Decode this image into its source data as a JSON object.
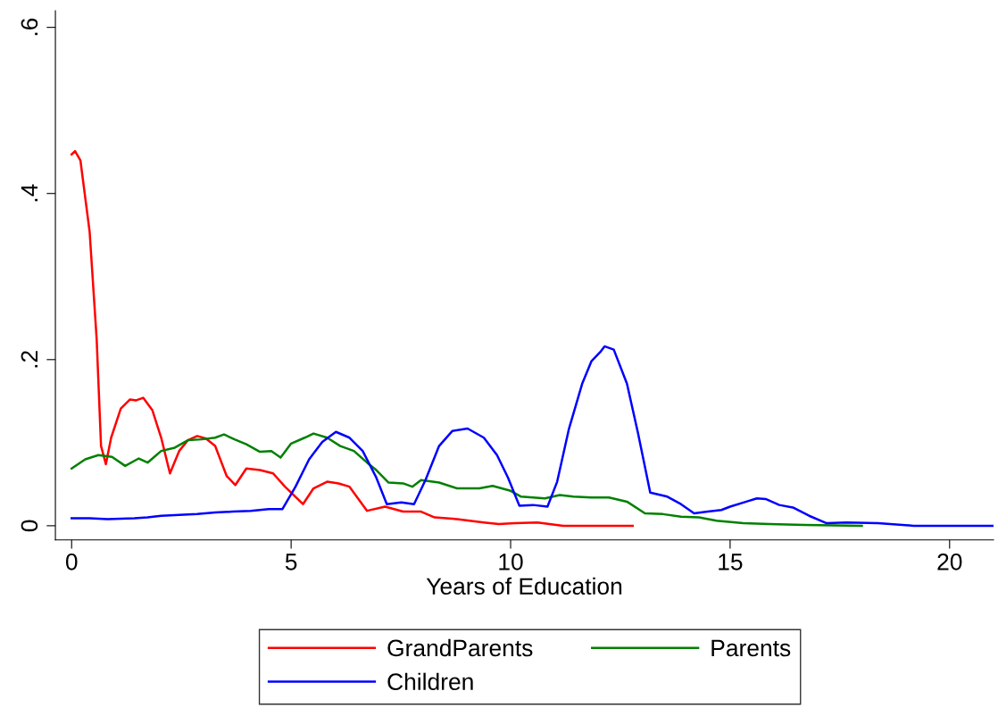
{
  "chart_data": {
    "type": "line",
    "xlabel": "Years of Education",
    "xlim": [
      -0.37,
      21.0
    ],
    "ylim": [
      -0.017,
      0.62
    ],
    "xticks": [
      0,
      5,
      10,
      15,
      20
    ],
    "yticks": [
      {
        "value": 0,
        "label": "0"
      },
      {
        "value": 0.2,
        "label": ".2"
      },
      {
        "value": 0.4,
        "label": ".4"
      },
      {
        "value": 0.6,
        "label": ".6"
      }
    ],
    "grid": false,
    "legend": "bottom",
    "marker": "none",
    "line_style": "solid",
    "series": [
      {
        "name": "GrandParents",
        "color": "#ff0000",
        "x": [
          0,
          0.08,
          0.2,
          0.41,
          0.57,
          0.67,
          0.78,
          0.9,
          1.12,
          1.33,
          1.47,
          1.63,
          1.84,
          2.04,
          2.24,
          2.45,
          2.65,
          2.86,
          3.06,
          3.27,
          3.53,
          3.73,
          3.98,
          4.29,
          4.59,
          4.86,
          5.27,
          5.51,
          5.82,
          6.08,
          6.33,
          6.73,
          7.14,
          7.55,
          7.96,
          8.27,
          8.78,
          9.39,
          9.73,
          10.1,
          10.61,
          11.2,
          12.78
        ],
        "values": [
          0.447,
          0.451,
          0.44,
          0.354,
          0.225,
          0.096,
          0.074,
          0.106,
          0.141,
          0.152,
          0.151,
          0.154,
          0.139,
          0.106,
          0.063,
          0.09,
          0.103,
          0.108,
          0.105,
          0.096,
          0.06,
          0.049,
          0.069,
          0.067,
          0.063,
          0.047,
          0.026,
          0.045,
          0.053,
          0.051,
          0.047,
          0.018,
          0.023,
          0.017,
          0.017,
          0.01,
          0.008,
          0.004,
          0.002,
          0.003,
          0.004,
          0.0,
          0.0
        ]
      },
      {
        "name": "Parents",
        "color": "#008000",
        "x": [
          0,
          0.31,
          0.61,
          0.92,
          1.22,
          1.53,
          1.73,
          2.04,
          2.35,
          2.65,
          2.96,
          3.27,
          3.47,
          3.71,
          3.98,
          4.29,
          4.55,
          4.76,
          5.0,
          5.31,
          5.51,
          5.82,
          6.12,
          6.43,
          6.73,
          6.94,
          7.22,
          7.55,
          7.76,
          7.96,
          8.37,
          8.78,
          9.29,
          9.59,
          10.0,
          10.24,
          10.78,
          11.12,
          11.43,
          11.84,
          12.24,
          12.65,
          13.06,
          13.47,
          13.88,
          14.29,
          14.69,
          15.3,
          15.9,
          16.7,
          18.0
        ],
        "values": [
          0.069,
          0.08,
          0.085,
          0.083,
          0.072,
          0.081,
          0.076,
          0.09,
          0.094,
          0.103,
          0.104,
          0.106,
          0.11,
          0.104,
          0.098,
          0.089,
          0.09,
          0.082,
          0.099,
          0.106,
          0.111,
          0.106,
          0.096,
          0.09,
          0.076,
          0.067,
          0.052,
          0.051,
          0.047,
          0.055,
          0.052,
          0.045,
          0.045,
          0.048,
          0.042,
          0.035,
          0.033,
          0.037,
          0.035,
          0.034,
          0.034,
          0.029,
          0.015,
          0.014,
          0.011,
          0.01,
          0.006,
          0.003,
          0.002,
          0.001,
          0.0
        ]
      },
      {
        "name": "Children",
        "color": "#0000ff",
        "x": [
          0,
          0.41,
          0.82,
          1.43,
          1.73,
          2.04,
          2.45,
          2.86,
          3.27,
          3.67,
          4.08,
          4.49,
          4.8,
          5.1,
          5.41,
          5.71,
          6.02,
          6.33,
          6.63,
          6.94,
          7.18,
          7.51,
          7.8,
          8.06,
          8.37,
          8.67,
          9.02,
          9.39,
          9.69,
          9.94,
          10.2,
          10.51,
          10.84,
          11.06,
          11.33,
          11.63,
          11.84,
          12.04,
          12.14,
          12.35,
          12.65,
          12.9,
          13.18,
          13.57,
          13.88,
          14.18,
          14.49,
          14.8,
          15.0,
          15.37,
          15.61,
          15.82,
          16.12,
          16.43,
          16.8,
          17.2,
          17.65,
          18.37,
          19.18,
          20.0,
          21.0
        ],
        "values": [
          0.009,
          0.009,
          0.008,
          0.009,
          0.01,
          0.012,
          0.013,
          0.014,
          0.016,
          0.017,
          0.018,
          0.02,
          0.02,
          0.047,
          0.08,
          0.101,
          0.113,
          0.106,
          0.09,
          0.058,
          0.026,
          0.028,
          0.026,
          0.055,
          0.096,
          0.114,
          0.117,
          0.106,
          0.085,
          0.058,
          0.024,
          0.025,
          0.023,
          0.053,
          0.117,
          0.171,
          0.198,
          0.209,
          0.216,
          0.212,
          0.171,
          0.112,
          0.04,
          0.035,
          0.026,
          0.015,
          0.017,
          0.019,
          0.023,
          0.029,
          0.033,
          0.032,
          0.025,
          0.022,
          0.012,
          0.003,
          0.004,
          0.003,
          0.0,
          0.0,
          0.0
        ]
      }
    ]
  }
}
